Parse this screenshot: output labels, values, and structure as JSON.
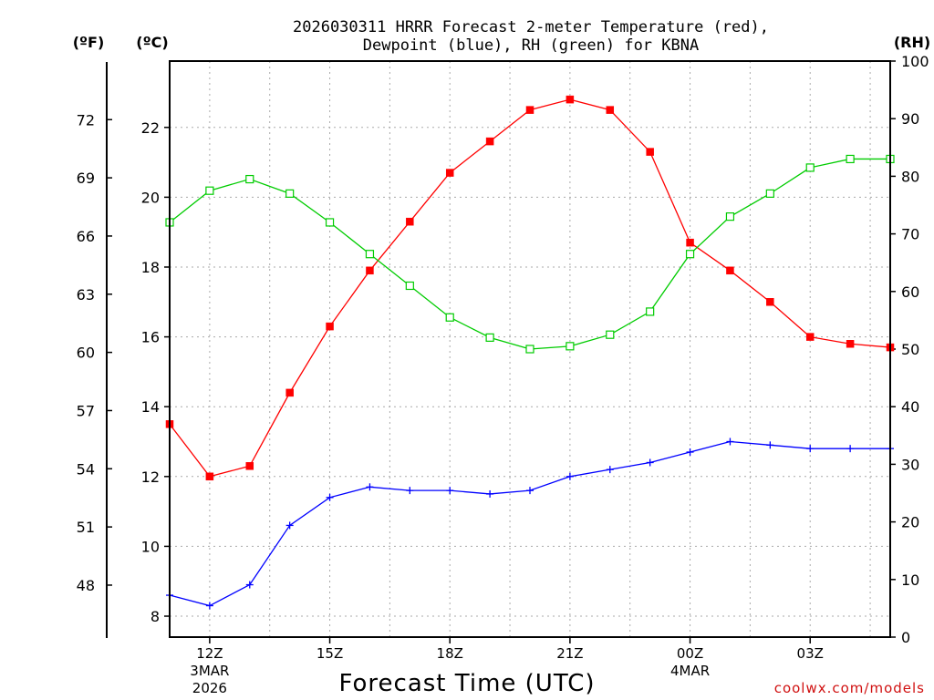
{
  "chart_data": {
    "type": "line",
    "title": "2026030311 HRRR Forecast 2-meter Temperature (red),",
    "subtitle": "Dewpoint (blue), RH (green) for KBNA",
    "xlabel": "Forecast Time (UTC)",
    "units": {
      "fahrenheit": "(ºF)",
      "celsius": "(ºC)",
      "rh": "(RH)"
    },
    "credit": "coolwx.com/models",
    "hours": [
      11,
      12,
      13,
      14,
      15,
      16,
      17,
      18,
      19,
      20,
      21,
      22,
      23,
      24,
      25,
      26,
      27,
      28,
      29
    ],
    "xlim": [
      11,
      29
    ],
    "x_ticks": [
      {
        "hour": 12,
        "lines": [
          "12Z",
          "3MAR",
          "2026"
        ]
      },
      {
        "hour": 15,
        "lines": [
          "15Z"
        ]
      },
      {
        "hour": 18,
        "lines": [
          "18Z"
        ]
      },
      {
        "hour": 21,
        "lines": [
          "21Z"
        ]
      },
      {
        "hour": 24,
        "lines": [
          "00Z",
          "4MAR"
        ]
      },
      {
        "hour": 27,
        "lines": [
          "03Z"
        ]
      }
    ],
    "celsius_axis": {
      "ylim": [
        7.4,
        23.9
      ],
      "ticks": [
        8,
        10,
        12,
        14,
        16,
        18,
        20,
        22
      ]
    },
    "fahrenheit_ticks": [
      48,
      51,
      54,
      57,
      60,
      63,
      66,
      69,
      72
    ],
    "rh_axis": {
      "ylim": [
        0,
        100
      ],
      "ticks": [
        0,
        10,
        20,
        30,
        40,
        50,
        60,
        70,
        80,
        90,
        100
      ]
    },
    "series": [
      {
        "name": "2-meter Temperature",
        "axis": "celsius",
        "color": "#ff0000",
        "marker": "filled-square",
        "values": [
          13.5,
          12.0,
          12.3,
          14.4,
          16.3,
          17.9,
          19.3,
          20.7,
          21.6,
          22.5,
          22.8,
          22.5,
          21.3,
          18.7,
          17.9,
          17.0,
          16.0,
          15.8,
          15.7
        ]
      },
      {
        "name": "Dewpoint",
        "axis": "celsius",
        "color": "#0000ff",
        "marker": "plus",
        "values": [
          8.6,
          8.3,
          8.9,
          10.6,
          11.4,
          11.7,
          11.6,
          11.6,
          11.5,
          11.6,
          12.0,
          12.2,
          12.4,
          12.7,
          13.0,
          12.9,
          12.8,
          12.8,
          12.8
        ]
      },
      {
        "name": "Relative Humidity",
        "axis": "rh",
        "color": "#00cc00",
        "marker": "open-square",
        "values": [
          72,
          77.5,
          79.5,
          77,
          72,
          66.5,
          61,
          55.5,
          52,
          50,
          50.5,
          52.5,
          56.5,
          66.5,
          73,
          77,
          81.5,
          83,
          83
        ]
      }
    ]
  }
}
